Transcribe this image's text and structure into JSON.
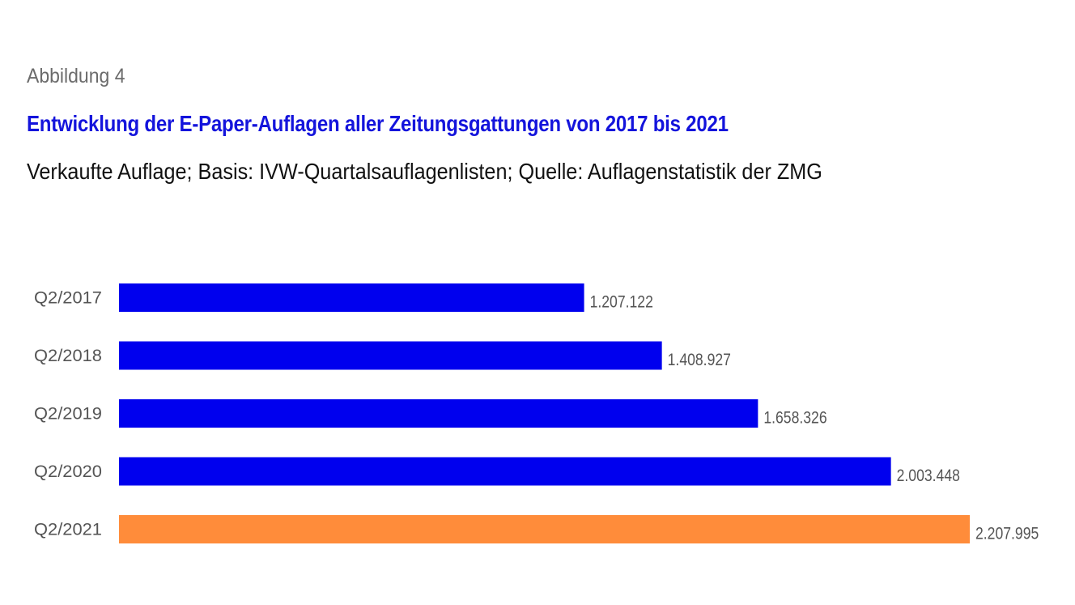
{
  "figure_label": "Abbildung 4",
  "chart_data": {
    "type": "bar",
    "orientation": "horizontal",
    "title": "Entwicklung der E-Paper-Auflagen aller Zeitungsgattungen von 2017 bis 2021",
    "subtitle": "Verkaufte Auflage; Basis: IVW-Quartalsauflagenlisten; Quelle: Auflagenstatistik der ZMG",
    "categories": [
      "Q2/2017",
      "Q2/2018",
      "Q2/2019",
      "Q2/2020",
      "Q2/2021"
    ],
    "values": [
      1207122,
      1408927,
      1658326,
      2003448,
      2207995
    ],
    "value_labels": [
      "1.207.122",
      "1.408.927",
      "1.658.326",
      "2.003.448",
      "2.207.995"
    ],
    "colors": [
      "#0000ee",
      "#0000ee",
      "#0000ee",
      "#0000ee",
      "#ff8c3a"
    ],
    "xlim": [
      0,
      2207995
    ],
    "grid": false,
    "legend": "none",
    "xlabel": "",
    "ylabel": ""
  }
}
